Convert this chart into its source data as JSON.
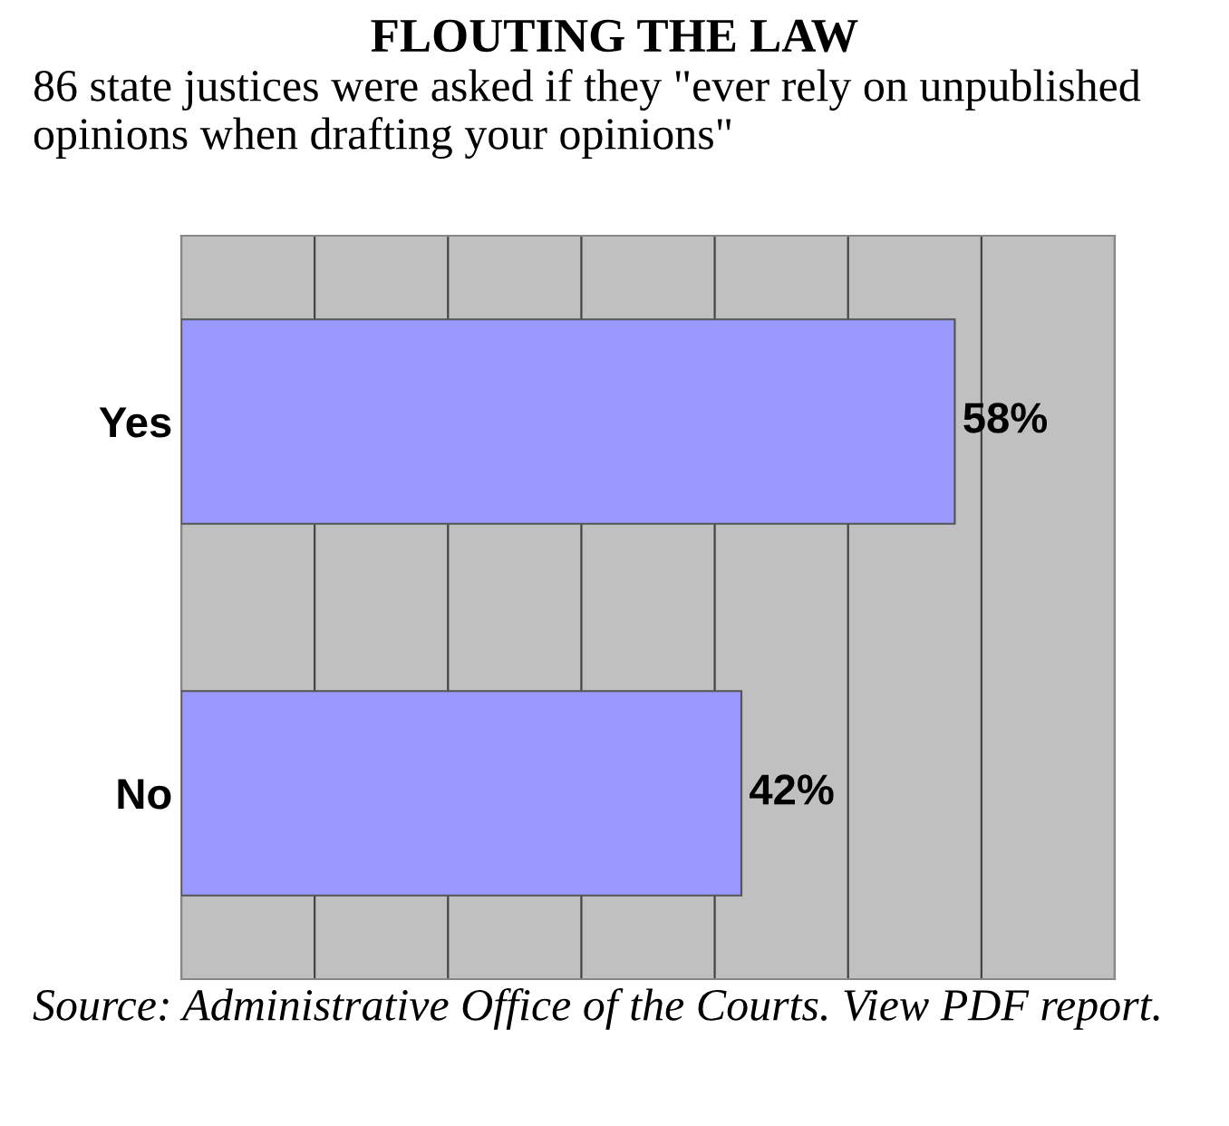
{
  "chart_data": {
    "type": "bar",
    "orientation": "horizontal",
    "title": "FLOUTING THE LAW",
    "subtitle": "86 state justices were asked if they \"ever rely on unpublished opinions when drafting your opinions\"",
    "categories": [
      "Yes",
      "No"
    ],
    "values": [
      58,
      42
    ],
    "value_labels": [
      "58%",
      "42%"
    ],
    "color": "#9999ff",
    "xlim": [
      0,
      70
    ],
    "xticks": [
      {
        "value": 0,
        "label": null
      },
      {
        "value": 10,
        "label": null
      },
      {
        "value": 20,
        "label": null
      },
      {
        "value": 30,
        "label": null
      },
      {
        "value": 40,
        "label": null
      },
      {
        "value": 50,
        "label": null
      },
      {
        "value": 60,
        "label": null
      },
      {
        "value": 70,
        "label": null
      }
    ],
    "grid": "x",
    "tick_labels": "y",
    "annotations": [
      "Source: Administrative Office of the Courts. View PDF report."
    ]
  }
}
